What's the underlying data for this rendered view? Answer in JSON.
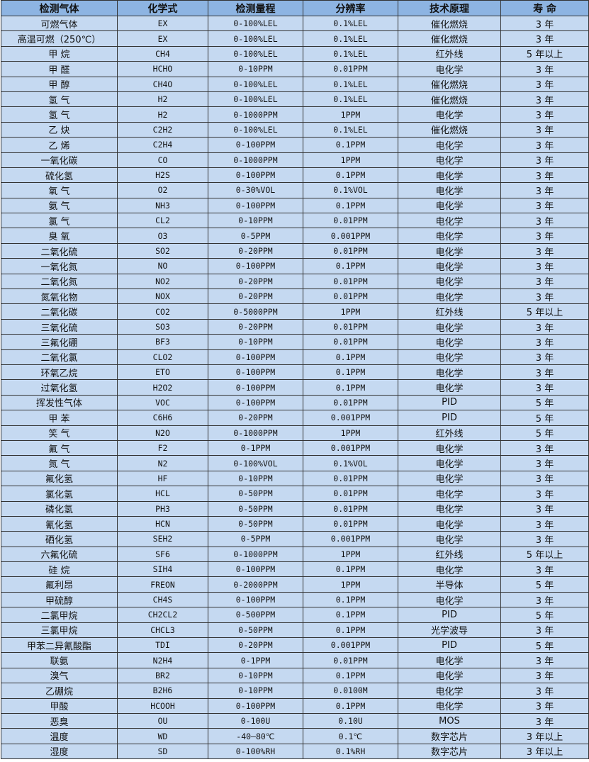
{
  "colors": {
    "header_bg": "#8db4e2",
    "row_bg": "#c5d9f1"
  },
  "headers": [
    "检测气体",
    "化学式",
    "检测量程",
    "分辨率",
    "技术原理",
    "寿 命"
  ],
  "rows": [
    [
      "可燃气体",
      "EX",
      "0-100%LEL",
      "0.1%LEL",
      "催化燃烧",
      "3 年"
    ],
    [
      "高温可燃（250℃）",
      "EX",
      "0-100%LEL",
      "0.1%LEL",
      "催化燃烧",
      "3 年"
    ],
    [
      "甲 烷",
      "CH4",
      "0-100%LEL",
      "0.1%LEL",
      "红外线",
      "5 年以上"
    ],
    [
      "甲 醛",
      "HCHO",
      "0-10PPM",
      "0.01PPM",
      "电化学",
      "3 年"
    ],
    [
      "甲 醇",
      "CH4O",
      "0-100%LEL",
      "0.1%LEL",
      "催化燃烧",
      "3 年"
    ],
    [
      "氢 气",
      "H2",
      "0-100%LEL",
      "0.1%LEL",
      "催化燃烧",
      "3 年"
    ],
    [
      "氢 气",
      "H2",
      "0-1000PPM",
      "1PPM",
      "电化学",
      "3 年"
    ],
    [
      "乙 炔",
      "C2H2",
      "0-100%LEL",
      "0.1%LEL",
      "催化燃烧",
      "3 年"
    ],
    [
      "乙 烯",
      "C2H4",
      "0-100PPM",
      "0.1PPM",
      "电化学",
      "3 年"
    ],
    [
      "一氧化碳",
      "CO",
      "0-1000PPM",
      "1PPM",
      "电化学",
      "3 年"
    ],
    [
      "硫化氢",
      "H2S",
      "0-100PPM",
      "0.1PPM",
      "电化学",
      "3 年"
    ],
    [
      "氧 气",
      "O2",
      "0-30%VOL",
      "0.1%VOL",
      "电化学",
      "3 年"
    ],
    [
      "氨 气",
      "NH3",
      "0-100PPM",
      "0.1PPM",
      "电化学",
      "3 年"
    ],
    [
      "氯 气",
      "CL2",
      "0-10PPM",
      "0.01PPM",
      "电化学",
      "3 年"
    ],
    [
      "臭 氧",
      "O3",
      "0-5PPM",
      "0.001PPM",
      "电化学",
      "3 年"
    ],
    [
      "二氧化硫",
      "SO2",
      "0-20PPM",
      "0.01PPM",
      "电化学",
      "3 年"
    ],
    [
      "一氧化氮",
      "NO",
      "0-100PPM",
      "0.1PPM",
      "电化学",
      "3 年"
    ],
    [
      "二氧化氮",
      "NO2",
      "0-20PPM",
      "0.01PPM",
      "电化学",
      "3 年"
    ],
    [
      "氮氧化物",
      "NOX",
      "0-20PPM",
      "0.01PPM",
      "电化学",
      "3 年"
    ],
    [
      "二氧化碳",
      "CO2",
      "0-5000PPM",
      "1PPM",
      "红外线",
      "5 年以上"
    ],
    [
      "三氧化硫",
      "SO3",
      "0-20PPM",
      "0.01PPM",
      "电化学",
      "3 年"
    ],
    [
      "三氟化硼",
      "BF3",
      "0-10PPM",
      "0.01PPM",
      "电化学",
      "3 年"
    ],
    [
      "二氧化氯",
      "CLO2",
      "0-100PPM",
      "0.1PPM",
      "电化学",
      "3 年"
    ],
    [
      "环氧乙烷",
      "ETO",
      "0-100PPM",
      "0.1PPM",
      "电化学",
      "3 年"
    ],
    [
      "过氧化氢",
      "H2O2",
      "0-100PPM",
      "0.1PPM",
      "电化学",
      "3 年"
    ],
    [
      "挥发性气体",
      "VOC",
      "0-100PPM",
      "0.01PPM",
      "PID",
      "5 年"
    ],
    [
      "甲 苯",
      "C6H6",
      "0-20PPM",
      "0.001PPM",
      "PID",
      "5 年"
    ],
    [
      "笑 气",
      "N2O",
      "0-1000PPM",
      "1PPM",
      "红外线",
      "5 年"
    ],
    [
      "氟 气",
      "F2",
      "0-1PPM",
      "0.001PPM",
      "电化学",
      "3 年"
    ],
    [
      "氮 气",
      "N2",
      "0-100%VOL",
      "0.1%VOL",
      "电化学",
      "3 年"
    ],
    [
      "氟化氢",
      "HF",
      "0-10PPM",
      "0.01PPM",
      "电化学",
      "3 年"
    ],
    [
      "氯化氢",
      "HCL",
      "0-50PPM",
      "0.01PPM",
      "电化学",
      "3 年"
    ],
    [
      "磷化氢",
      "PH3",
      "0-50PPM",
      "0.01PPM",
      "电化学",
      "3 年"
    ],
    [
      "氰化氢",
      "HCN",
      "0-50PPM",
      "0.01PPM",
      "电化学",
      "3 年"
    ],
    [
      "硒化氢",
      "SEH2",
      "0-5PPM",
      "0.001PPM",
      "电化学",
      "3 年"
    ],
    [
      "六氟化硫",
      "SF6",
      "0-1000PPM",
      "1PPM",
      "红外线",
      "5 年以上"
    ],
    [
      "硅 烷",
      "SIH4",
      "0-100PPM",
      "0.1PPM",
      "电化学",
      "3 年"
    ],
    [
      "氟利昂",
      "FREON",
      "0-2000PPM",
      "1PPM",
      "半导体",
      "5 年"
    ],
    [
      "甲硫醇",
      "CH4S",
      "0-100PPM",
      "0.1PPM",
      "电化学",
      "3 年"
    ],
    [
      "二氯甲烷",
      "CH2CL2",
      "0-500PPM",
      "0.1PPM",
      "PID",
      "5 年"
    ],
    [
      "三氯甲烷",
      "CHCL3",
      "0-50PPM",
      "0.1PPM",
      "光学波导",
      "3 年"
    ],
    [
      "甲苯二异氰酸酯",
      "TDI",
      "0-20PPM",
      "0.001PPM",
      "PID",
      "5 年"
    ],
    [
      "联氨",
      "N2H4",
      "0-1PPM",
      "0.01PPM",
      "电化学",
      "3 年"
    ],
    [
      "溴气",
      "BR2",
      "0-10PPM",
      "0.1PPM",
      "电化学",
      "3 年"
    ],
    [
      "乙硼烷",
      "B2H6",
      "0-10PPM",
      "0.0100M",
      "电化学",
      "3 年"
    ],
    [
      "甲酸",
      "HCOOH",
      "0-100PPM",
      "0.1PPM",
      "电化学",
      "3 年"
    ],
    [
      "恶臭",
      "OU",
      "0-100U",
      "0.10U",
      "MOS",
      "3 年"
    ],
    [
      "温度",
      "WD",
      "-40—80℃",
      "0.1℃",
      "数字芯片",
      "3 年以上"
    ],
    [
      "湿度",
      "SD",
      "0-100%RH",
      "0.1%RH",
      "数字芯片",
      "3 年以上"
    ]
  ]
}
